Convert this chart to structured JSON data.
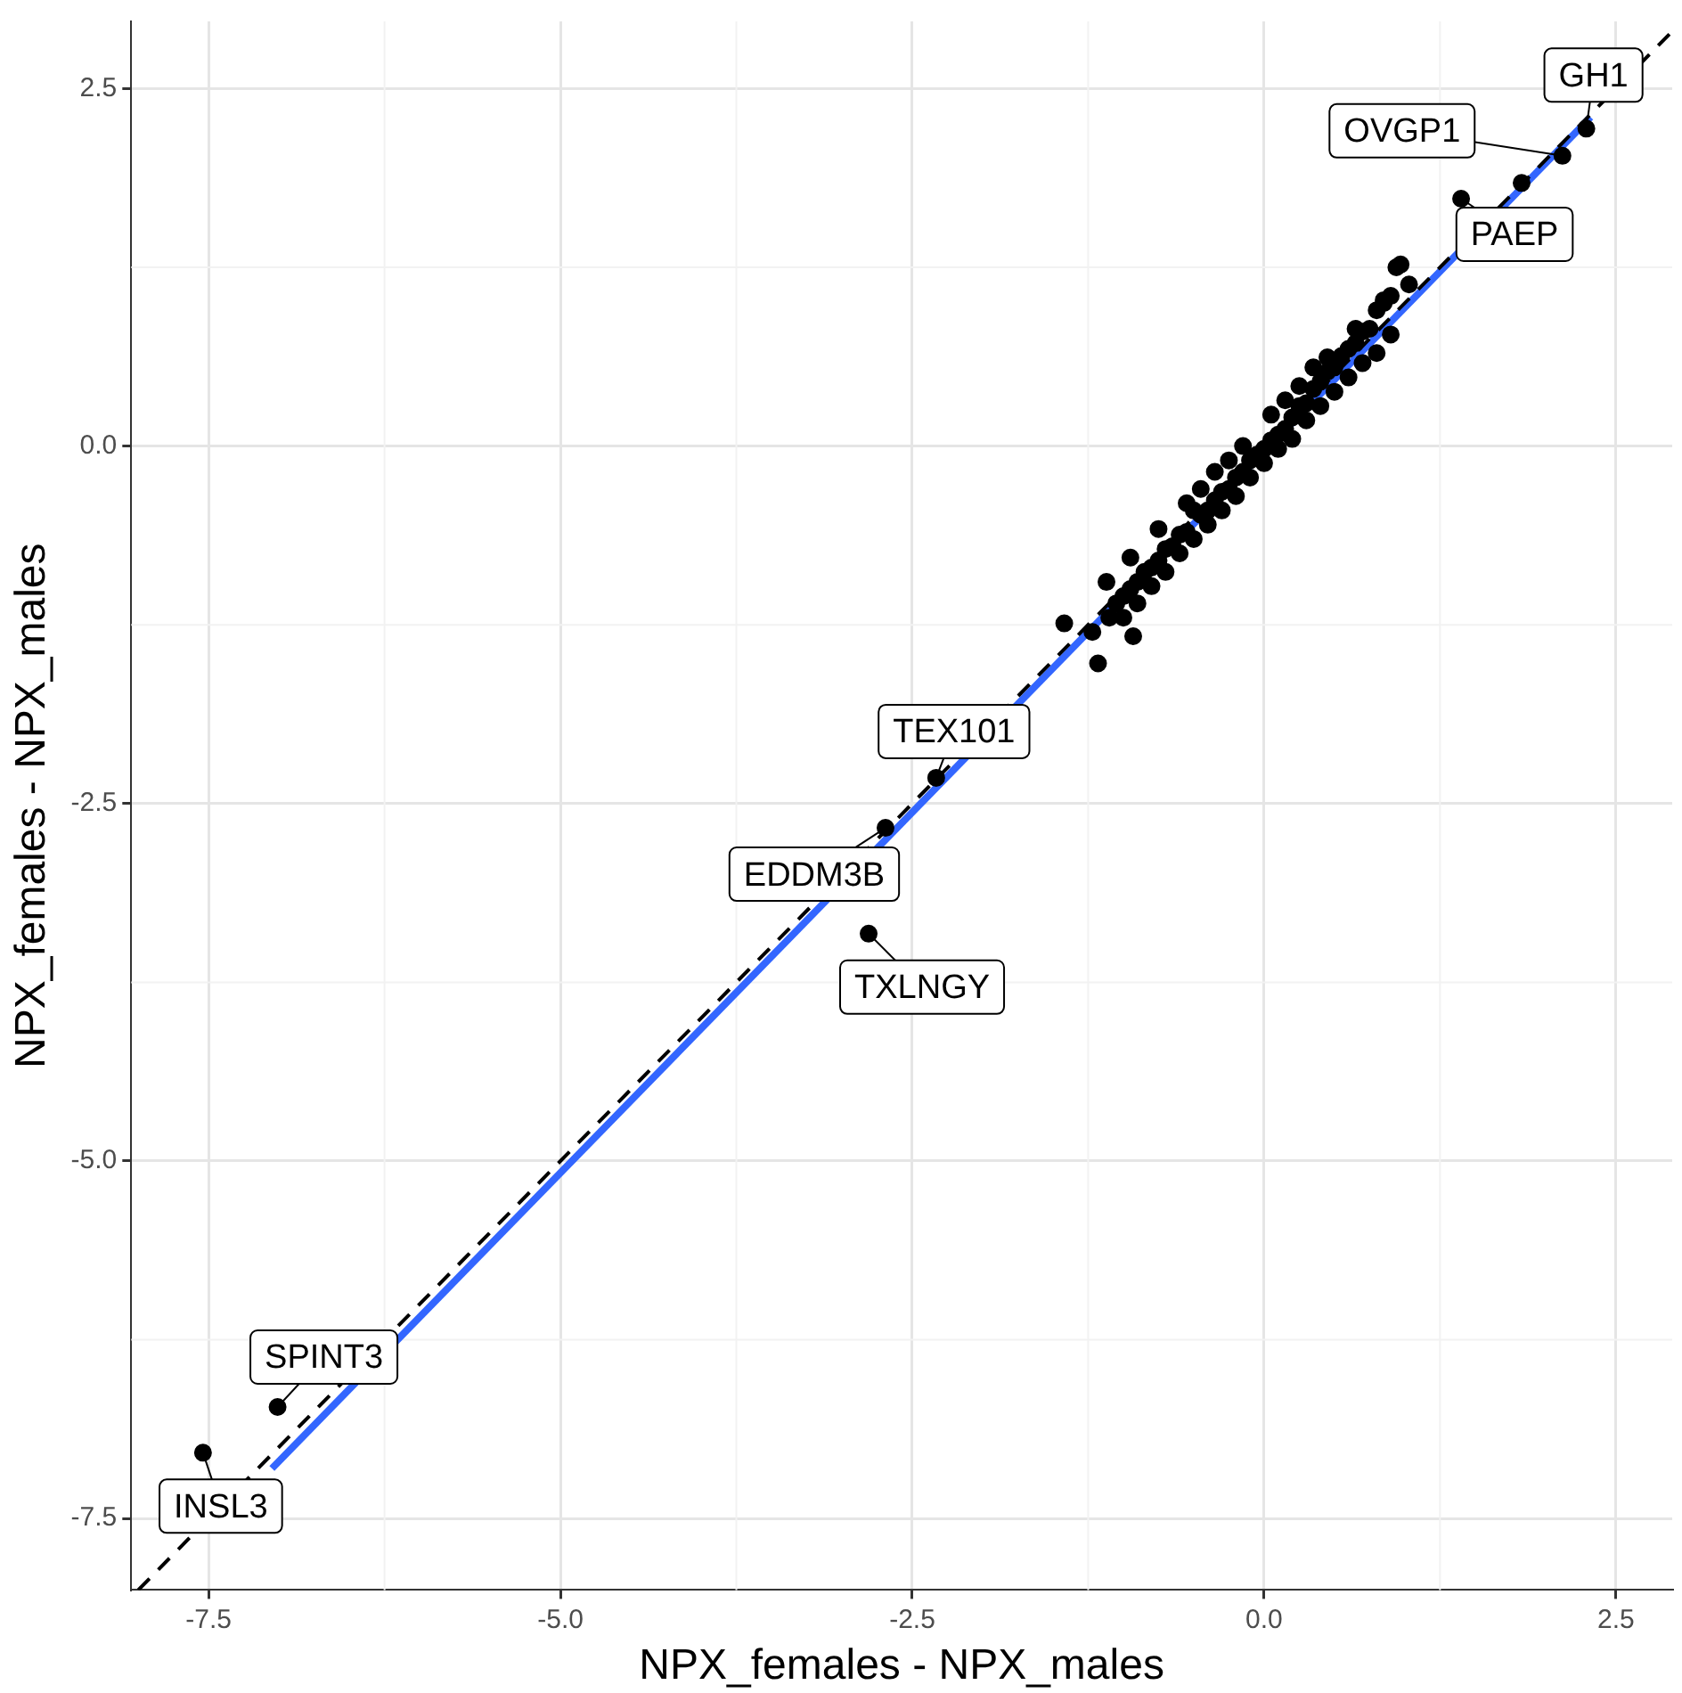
{
  "chart_data": {
    "type": "scatter",
    "xlabel": "NPX_females - NPX_males",
    "ylabel": "NPX_females - NPX_males",
    "xlim": [
      -8.05,
      2.9
    ],
    "ylim": [
      -8.0,
      2.97
    ],
    "xticks": [
      {
        "value": -7.5,
        "label": "-7.5"
      },
      {
        "value": -5,
        "label": "-5.0"
      },
      {
        "value": -2.5,
        "label": "-2.5"
      },
      {
        "value": 0,
        "label": "0.0"
      },
      {
        "value": 2.5,
        "label": "2.5"
      }
    ],
    "yticks": [
      {
        "value": -7.5,
        "label": "-7.5"
      },
      {
        "value": -5,
        "label": "-5.0"
      },
      {
        "value": -2.5,
        "label": "-2.5"
      },
      {
        "value": 0,
        "label": "0.0"
      },
      {
        "value": 2.5,
        "label": "2.5"
      }
    ],
    "grid": true,
    "legend": false,
    "marker": "circle",
    "series": [
      {
        "type": "scatter",
        "color": "#000000",
        "x": [
          2.29,
          2.12,
          1.83,
          1.4,
          1.03,
          0.97,
          0.94,
          0.9,
          0.85,
          0.8,
          0.75,
          0.7,
          0.65,
          0.6,
          0.55,
          0.5,
          0.45,
          0.4,
          0.35,
          0.3,
          0.25,
          0.2,
          0.15,
          0.1,
          0.05,
          0.0,
          -0.05,
          -0.1,
          -0.15,
          -0.2,
          -0.25,
          -0.3,
          -0.35,
          -0.4,
          -0.45,
          -0.5,
          -0.55,
          -0.6,
          -0.65,
          -0.7,
          -0.75,
          -0.8,
          -0.85,
          -0.9,
          -0.95,
          -1.0,
          -1.05,
          -1.1,
          -1.18,
          -1.12,
          -1.22,
          -1.42,
          -0.93,
          0.9,
          0.8,
          0.7,
          0.6,
          0.5,
          0.4,
          0.3,
          0.2,
          0.1,
          0.0,
          -0.1,
          -0.2,
          -0.3,
          -0.4,
          -0.5,
          -0.6,
          -0.7,
          -0.8,
          -0.9,
          -1.0,
          0.85,
          0.65,
          0.45,
          0.25,
          0.05,
          -0.15,
          -0.35,
          -0.55,
          -0.75,
          -0.95,
          0.35,
          -0.45,
          0.15,
          -0.25,
          -2.33,
          -2.69,
          -2.81,
          -7.01,
          -7.54
        ],
        "values": [
          2.22,
          2.03,
          1.84,
          1.73,
          1.13,
          1.27,
          1.25,
          1.05,
          1.0,
          0.95,
          0.82,
          0.8,
          0.72,
          0.68,
          0.63,
          0.55,
          0.52,
          0.45,
          0.4,
          0.3,
          0.28,
          0.2,
          0.12,
          0.08,
          0.04,
          -0.02,
          -0.06,
          -0.1,
          -0.18,
          -0.22,
          -0.3,
          -0.32,
          -0.38,
          -0.45,
          -0.48,
          -0.45,
          -0.6,
          -0.62,
          -0.7,
          -0.72,
          -0.8,
          -0.85,
          -0.88,
          -0.95,
          -1.0,
          -1.05,
          -1.1,
          -1.2,
          -1.52,
          -0.95,
          -1.3,
          -1.24,
          -1.33,
          0.78,
          0.65,
          0.58,
          0.48,
          0.38,
          0.28,
          0.18,
          0.05,
          -0.02,
          -0.12,
          -0.22,
          -0.35,
          -0.45,
          -0.55,
          -0.65,
          -0.75,
          -0.88,
          -0.98,
          -1.1,
          -1.2,
          1.02,
          0.82,
          0.62,
          0.42,
          0.22,
          0.0,
          -0.18,
          -0.4,
          -0.58,
          -0.78,
          0.55,
          -0.3,
          0.32,
          -0.1,
          -2.32,
          -2.67,
          -3.41,
          -6.72,
          -7.04
        ]
      },
      {
        "type": "line",
        "color": "#000000",
        "line_style": "dashed",
        "marker": "none",
        "x": [
          -8.0,
          2.9
        ],
        "values": [
          -8.0,
          2.9
        ]
      },
      {
        "type": "line",
        "color": "#3366ff",
        "line_style": "solid",
        "marker": "none",
        "x": [
          -7.05,
          2.32
        ],
        "values": [
          -7.15,
          2.3
        ]
      }
    ],
    "annotations": [
      {
        "text": "GH1",
        "x": 2.29,
        "y": 2.22
      },
      {
        "text": "OVGP1",
        "x": 2.12,
        "y": 2.03
      },
      {
        "text": "PAEP",
        "x": 1.4,
        "y": 1.73
      },
      {
        "text": "TEX101",
        "x": -2.33,
        "y": -2.32
      },
      {
        "text": "EDDM3B",
        "x": -2.69,
        "y": -2.67
      },
      {
        "text": "TXLNGY",
        "x": -2.81,
        "y": -3.41
      },
      {
        "text": "SPINT3",
        "x": -7.01,
        "y": -6.72
      },
      {
        "text": "INSL3",
        "x": -7.54,
        "y": -7.04
      }
    ]
  }
}
